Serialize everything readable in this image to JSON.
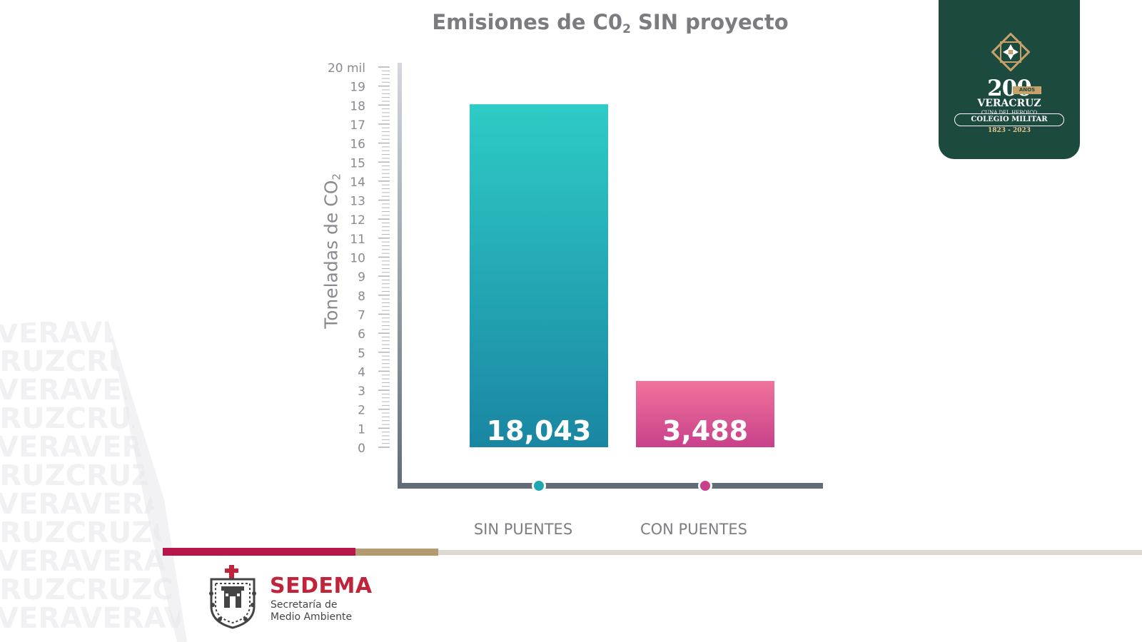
{
  "chart_data": {
    "type": "bar",
    "title": "Emisiones de C0",
    "title_subscript": "2",
    "title_rest": " SIN proyecto",
    "ylabel": "Toneladas de CO",
    "ylabel_subscript": "2",
    "xlabel": "",
    "categories": [
      "SIN PUENTES",
      "CON PUENTES"
    ],
    "values": [
      18043,
      3488
    ],
    "value_labels": [
      "18,043",
      "3,488"
    ],
    "ylim": [
      0,
      20000
    ],
    "yticks": [
      {
        "value": 0,
        "label": "0"
      },
      {
        "value": 1000,
        "label": "1"
      },
      {
        "value": 2000,
        "label": "2"
      },
      {
        "value": 3000,
        "label": "3"
      },
      {
        "value": 4000,
        "label": "4"
      },
      {
        "value": 5000,
        "label": "5"
      },
      {
        "value": 6000,
        "label": "6"
      },
      {
        "value": 7000,
        "label": "7"
      },
      {
        "value": 8000,
        "label": "8"
      },
      {
        "value": 9000,
        "label": "9"
      },
      {
        "value": 10000,
        "label": "10"
      },
      {
        "value": 11000,
        "label": "11"
      },
      {
        "value": 12000,
        "label": "12"
      },
      {
        "value": 13000,
        "label": "13"
      },
      {
        "value": 14000,
        "label": "14"
      },
      {
        "value": 15000,
        "label": "15"
      },
      {
        "value": 16000,
        "label": "16"
      },
      {
        "value": 17000,
        "label": "17"
      },
      {
        "value": 18000,
        "label": "18"
      },
      {
        "value": 19000,
        "label": "19"
      },
      {
        "value": 20000,
        "label": "20 mil"
      }
    ],
    "colors": {
      "bar1_top": "#2ecbc6",
      "bar1_bottom": "#1a86a2",
      "bar2_top": "#f0749c",
      "bar2_bottom": "#c8418a",
      "axis": "#626b78",
      "tick_label": "#8a8a90"
    },
    "grid": false,
    "legend": "none"
  },
  "watermark": {
    "words": [
      "VERA",
      "CRUZ"
    ]
  },
  "badge": {
    "years": "200",
    "anos": "AÑOS",
    "state": "VERACRUZ",
    "line1": "CUNA DEL HEROICO",
    "line2": "COLEGIO MILITAR",
    "line3": "1823 - 2023"
  },
  "logo": {
    "brand": "SEDEMA",
    "description": "Secretaría de\nMedio Ambiente"
  }
}
